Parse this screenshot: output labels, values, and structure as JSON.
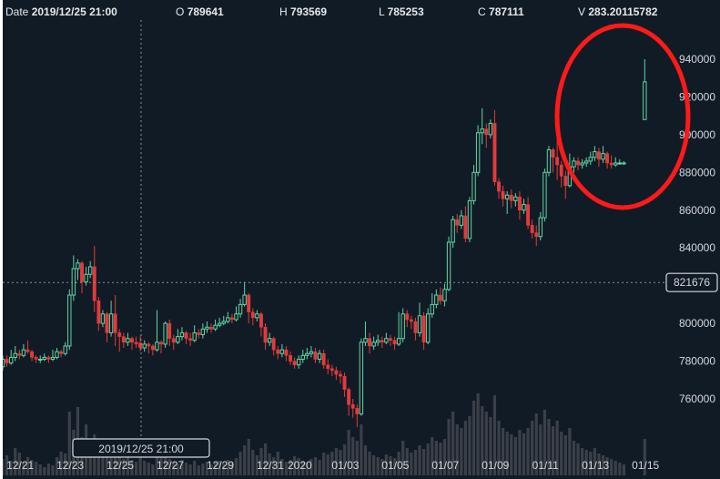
{
  "header": {
    "date_label": "Date",
    "date_value": "2019/12/25 21:00",
    "open_label": "O",
    "open_value": "789641",
    "high_label": "H",
    "high_value": "793569",
    "low_label": "L",
    "low_value": "785253",
    "close_label": "C",
    "close_value": "787111",
    "volume_label": "V",
    "volume_value": "283.20115782"
  },
  "crosshair": {
    "time_label": "2019/12/25 21:00",
    "price_label": "821676",
    "price": 821676
  },
  "annotation": {
    "shape": "ellipse",
    "color": "#ff1a1a"
  },
  "colors": {
    "background": "#111b26",
    "up": "#5fd6a4",
    "down": "#e23b3b",
    "volume": "#3b4048"
  },
  "chart_data": {
    "type": "candlestick",
    "candle_interval": "4h",
    "first_candle_time": "2019/12/20 09:00",
    "ylim": [
      750000,
      950000
    ],
    "y_ticks": [
      "940000",
      "920000",
      "900000",
      "880000",
      "860000",
      "840000",
      "800000",
      "780000",
      "760000"
    ],
    "x_ticks": [
      {
        "label": "12/21",
        "date": "2019-12-21"
      },
      {
        "label": "12/23",
        "date": "2019-12-23"
      },
      {
        "label": "12/25",
        "date": "2019-12-25"
      },
      {
        "label": "12/27",
        "date": "2019-12-27"
      },
      {
        "label": "12/29",
        "date": "2019-12-29"
      },
      {
        "label": "12/31",
        "date": "2019-12-31"
      },
      {
        "label": "2020",
        "date": "2020-01-01"
      },
      {
        "label": "01/03",
        "date": "2020-01-03"
      },
      {
        "label": "01/05",
        "date": "2020-01-05"
      },
      {
        "label": "01/07",
        "date": "2020-01-07"
      },
      {
        "label": "01/09",
        "date": "2020-01-09"
      },
      {
        "label": "01/11",
        "date": "2020-01-11"
      },
      {
        "label": "01/13",
        "date": "2020-01-13"
      },
      {
        "label": "01/15",
        "date": "2020-01-15"
      }
    ],
    "grid": false,
    "ohlc": [
      [
        777000,
        783000,
        775000,
        781000
      ],
      [
        781000,
        783000,
        777000,
        779000
      ],
      [
        779000,
        786000,
        778000,
        782000
      ],
      [
        782000,
        788000,
        780000,
        784000
      ],
      [
        784000,
        786000,
        781000,
        783000
      ],
      [
        783000,
        789000,
        782000,
        786000
      ],
      [
        786000,
        791000,
        784000,
        785000
      ],
      [
        785000,
        786000,
        780000,
        782000
      ],
      [
        782000,
        783000,
        779000,
        781000
      ],
      [
        781000,
        783000,
        779000,
        781000
      ],
      [
        781000,
        784000,
        780000,
        782000
      ],
      [
        782000,
        783000,
        779000,
        781000
      ],
      [
        781000,
        786000,
        780000,
        782000
      ],
      [
        782000,
        787000,
        781000,
        785000
      ],
      [
        785000,
        786000,
        782000,
        784000
      ],
      [
        784000,
        790000,
        783000,
        788000
      ],
      [
        788000,
        818000,
        786000,
        815000
      ],
      [
        815000,
        836000,
        812000,
        829000
      ],
      [
        829000,
        834000,
        823000,
        832000
      ],
      [
        832000,
        833000,
        816000,
        822000
      ],
      [
        822000,
        830000,
        820000,
        826000
      ],
      [
        826000,
        833000,
        824000,
        830000
      ],
      [
        830000,
        841000,
        806000,
        812000
      ],
      [
        812000,
        814000,
        796000,
        800000
      ],
      [
        800000,
        807000,
        798000,
        805000
      ],
      [
        805000,
        806000,
        790000,
        795000
      ],
      [
        795000,
        812000,
        793000,
        805000
      ],
      [
        805000,
        815000,
        788000,
        795000
      ],
      [
        795000,
        797000,
        785000,
        793000
      ],
      [
        793000,
        795000,
        787000,
        790000
      ],
      [
        790000,
        795000,
        788000,
        792000
      ],
      [
        792000,
        793000,
        786000,
        790000
      ],
      [
        790000,
        793000,
        787000,
        789000
      ],
      [
        789641,
        793569,
        785253,
        787111
      ],
      [
        787000,
        791000,
        785000,
        789000
      ],
      [
        789000,
        790000,
        784000,
        788000
      ],
      [
        788000,
        789000,
        783000,
        786000
      ],
      [
        786000,
        807000,
        785000,
        790000
      ],
      [
        790000,
        791000,
        784000,
        789000
      ],
      [
        789000,
        801000,
        787000,
        800000
      ],
      [
        800000,
        802000,
        788000,
        792000
      ],
      [
        792000,
        794000,
        786000,
        790000
      ],
      [
        790000,
        797000,
        789000,
        793000
      ],
      [
        793000,
        798000,
        791000,
        795000
      ],
      [
        795000,
        796000,
        789000,
        792000
      ],
      [
        792000,
        795000,
        788000,
        791000
      ],
      [
        791000,
        799000,
        790000,
        795000
      ],
      [
        795000,
        797000,
        792000,
        794000
      ],
      [
        794000,
        800000,
        792000,
        797000
      ],
      [
        797000,
        801000,
        795000,
        798000
      ],
      [
        798000,
        800000,
        795000,
        797000
      ],
      [
        797000,
        802000,
        796000,
        799000
      ],
      [
        799000,
        803000,
        798000,
        800000
      ],
      [
        800000,
        804000,
        799000,
        801000
      ],
      [
        801000,
        806000,
        800000,
        803000
      ],
      [
        803000,
        805000,
        800000,
        802000
      ],
      [
        802000,
        809000,
        801000,
        805000
      ],
      [
        805000,
        813000,
        803000,
        810000
      ],
      [
        810000,
        822000,
        809000,
        815000
      ],
      [
        815000,
        816000,
        800000,
        806000
      ],
      [
        806000,
        808000,
        799000,
        803000
      ],
      [
        803000,
        807000,
        801000,
        805000
      ],
      [
        805000,
        806000,
        793000,
        798000
      ],
      [
        798000,
        800000,
        786000,
        790000
      ],
      [
        790000,
        795000,
        788000,
        792000
      ],
      [
        792000,
        793000,
        783000,
        786000
      ],
      [
        786000,
        788000,
        781000,
        784000
      ],
      [
        784000,
        789000,
        782000,
        786000
      ],
      [
        786000,
        788000,
        780000,
        783000
      ],
      [
        783000,
        785000,
        778000,
        780000
      ],
      [
        780000,
        782000,
        776000,
        778000
      ],
      [
        778000,
        783000,
        776000,
        781000
      ],
      [
        781000,
        786000,
        779000,
        783000
      ],
      [
        783000,
        787000,
        781000,
        784000
      ],
      [
        784000,
        788000,
        782000,
        785000
      ],
      [
        785000,
        787000,
        779000,
        781000
      ],
      [
        781000,
        786000,
        779000,
        784000
      ],
      [
        784000,
        786000,
        776000,
        778000
      ],
      [
        778000,
        781000,
        773000,
        776000
      ],
      [
        776000,
        778000,
        772000,
        775000
      ],
      [
        775000,
        777000,
        770000,
        773000
      ],
      [
        773000,
        775000,
        768000,
        772000
      ],
      [
        772000,
        774000,
        761000,
        765000
      ],
      [
        765000,
        766000,
        751000,
        757000
      ],
      [
        757000,
        760000,
        750000,
        755000
      ],
      [
        755000,
        757000,
        745000,
        752000
      ],
      [
        752000,
        792000,
        751000,
        790000
      ],
      [
        790000,
        801000,
        788000,
        792000
      ],
      [
        792000,
        795000,
        784000,
        788000
      ],
      [
        788000,
        793000,
        786000,
        790000
      ],
      [
        790000,
        794000,
        788000,
        791000
      ],
      [
        791000,
        793000,
        787000,
        790000
      ],
      [
        790000,
        795000,
        789000,
        792000
      ],
      [
        792000,
        794000,
        788000,
        791000
      ],
      [
        791000,
        793000,
        786000,
        789000
      ],
      [
        789000,
        806000,
        788000,
        792000
      ],
      [
        792000,
        808000,
        790000,
        805000
      ],
      [
        805000,
        807000,
        798000,
        802000
      ],
      [
        802000,
        804000,
        797000,
        801000
      ],
      [
        801000,
        803000,
        791000,
        795000
      ],
      [
        795000,
        811000,
        793000,
        804000
      ],
      [
        804000,
        806000,
        786000,
        790000
      ],
      [
        790000,
        808000,
        789000,
        805000
      ],
      [
        805000,
        816000,
        803000,
        810000
      ],
      [
        810000,
        818000,
        808000,
        815000
      ],
      [
        815000,
        819000,
        810000,
        812000
      ],
      [
        812000,
        821000,
        809000,
        818000
      ],
      [
        818000,
        846000,
        817000,
        843000
      ],
      [
        843000,
        857000,
        840000,
        855000
      ],
      [
        855000,
        858000,
        848000,
        852000
      ],
      [
        852000,
        860000,
        850000,
        857000
      ],
      [
        857000,
        862000,
        843000,
        845000
      ],
      [
        845000,
        867000,
        843000,
        865000
      ],
      [
        865000,
        884000,
        863000,
        880000
      ],
      [
        880000,
        905000,
        878000,
        901000
      ],
      [
        901000,
        914000,
        895000,
        903000
      ],
      [
        903000,
        906000,
        893000,
        900000
      ],
      [
        900000,
        908000,
        898000,
        906000
      ],
      [
        906000,
        913000,
        873000,
        875000
      ],
      [
        875000,
        877000,
        866000,
        870000
      ],
      [
        870000,
        873000,
        862000,
        866000
      ],
      [
        866000,
        870000,
        858000,
        868000
      ],
      [
        868000,
        871000,
        861000,
        865000
      ],
      [
        865000,
        869000,
        862000,
        867000
      ],
      [
        867000,
        870000,
        855000,
        860000
      ],
      [
        860000,
        866000,
        858000,
        863000
      ],
      [
        863000,
        867000,
        850000,
        852000
      ],
      [
        852000,
        855000,
        845000,
        848000
      ],
      [
        848000,
        852000,
        841000,
        846000
      ],
      [
        846000,
        859000,
        844000,
        856000
      ],
      [
        856000,
        882000,
        854000,
        880000
      ],
      [
        880000,
        894000,
        878000,
        892000
      ],
      [
        892000,
        893000,
        880000,
        888000
      ],
      [
        888000,
        900000,
        876000,
        884000
      ],
      [
        884000,
        886000,
        872000,
        878000
      ],
      [
        878000,
        881000,
        866000,
        873000
      ],
      [
        873000,
        890000,
        872000,
        883000
      ],
      [
        883000,
        888000,
        880000,
        886000
      ],
      [
        886000,
        888000,
        881000,
        884000
      ],
      [
        884000,
        887000,
        882000,
        885000
      ],
      [
        885000,
        888000,
        883000,
        886000
      ],
      [
        886000,
        891000,
        884000,
        888000
      ],
      [
        888000,
        894000,
        886000,
        891000
      ],
      [
        891000,
        893000,
        883000,
        887000
      ],
      [
        887000,
        894000,
        885000,
        890000
      ],
      [
        890000,
        891000,
        882000,
        885000
      ],
      [
        885000,
        889000,
        882000,
        884000
      ],
      [
        884000,
        888000,
        883000,
        885000
      ],
      [
        885000,
        887000,
        884000,
        885000
      ],
      [
        885000,
        886000,
        884000,
        885000
      ],
      null,
      null,
      null,
      null,
      [
        908000,
        940000,
        908000,
        928000
      ]
    ],
    "volume": [
      180,
      220,
      160,
      300,
      250,
      140,
      200,
      170,
      150,
      120,
      90,
      130,
      110,
      200,
      260,
      240,
      700,
      500,
      750,
      420,
      560,
      380,
      450,
      300,
      260,
      330,
      200,
      280,
      230,
      180,
      210,
      170,
      150,
      283.20115782,
      160,
      140,
      120,
      260,
      200,
      310,
      180,
      150,
      130,
      170,
      140,
      120,
      160,
      110,
      130,
      150,
      120,
      140,
      160,
      130,
      170,
      150,
      190,
      260,
      330,
      400,
      280,
      220,
      300,
      350,
      240,
      200,
      260,
      180,
      150,
      170,
      210,
      190,
      160,
      140,
      180,
      200,
      170,
      250,
      230,
      260,
      300,
      280,
      340,
      500,
      420,
      380,
      560,
      330,
      260,
      220,
      200,
      180,
      230,
      210,
      190,
      260,
      380,
      300,
      250,
      280,
      330,
      290,
      350,
      420,
      380,
      360,
      400,
      620,
      700,
      560,
      520,
      600,
      650,
      820,
      900,
      760,
      700,
      640,
      880,
      600,
      520,
      480,
      450,
      420,
      500,
      460,
      520,
      600,
      680,
      560,
      720,
      620,
      540,
      600,
      480,
      440,
      520,
      380,
      350,
      300,
      280,
      260,
      300,
      240,
      220,
      200,
      180,
      160,
      140,
      120,
      null,
      null,
      null,
      null,
      400
    ]
  }
}
